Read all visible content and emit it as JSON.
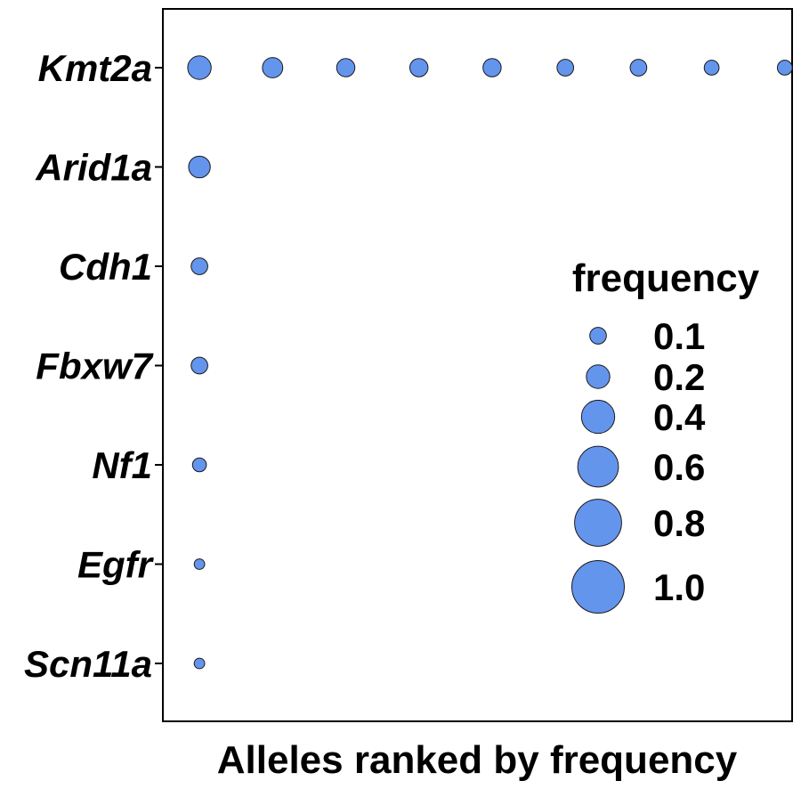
{
  "chart_data": {
    "type": "scatter",
    "title": "",
    "xlabel": "Alleles ranked by frequency",
    "ylabel": "",
    "categories": [
      "Kmt2a",
      "Arid1a",
      "Cdh1",
      "Fbxw7",
      "Nf1",
      "Egfr",
      "Scn11a"
    ],
    "xlim": [
      0.5,
      9.1
    ],
    "points": [
      {
        "gene": "Kmt2a",
        "rank": 1,
        "frequency": 0.2
      },
      {
        "gene": "Kmt2a",
        "rank": 2,
        "frequency": 0.15
      },
      {
        "gene": "Kmt2a",
        "rank": 3,
        "frequency": 0.12
      },
      {
        "gene": "Kmt2a",
        "rank": 4,
        "frequency": 0.12
      },
      {
        "gene": "Kmt2a",
        "rank": 5,
        "frequency": 0.12
      },
      {
        "gene": "Kmt2a",
        "rank": 6,
        "frequency": 0.1
      },
      {
        "gene": "Kmt2a",
        "rank": 7,
        "frequency": 0.1
      },
      {
        "gene": "Kmt2a",
        "rank": 8,
        "frequency": 0.08
      },
      {
        "gene": "Kmt2a",
        "rank": 9,
        "frequency": 0.08
      },
      {
        "gene": "Arid1a",
        "rank": 1,
        "frequency": 0.17
      },
      {
        "gene": "Cdh1",
        "rank": 1,
        "frequency": 0.1
      },
      {
        "gene": "Fbxw7",
        "rank": 1,
        "frequency": 0.1
      },
      {
        "gene": "Nf1",
        "rank": 1,
        "frequency": 0.07
      },
      {
        "gene": "Egfr",
        "rank": 1,
        "frequency": 0.04
      },
      {
        "gene": "Scn11a",
        "rank": 1,
        "frequency": 0.04
      }
    ],
    "legend": {
      "title": "frequency",
      "position": "right",
      "items": [
        {
          "value": 0.1,
          "label": "0.1"
        },
        {
          "value": 0.2,
          "label": "0.2"
        },
        {
          "value": 0.4,
          "label": "0.4"
        },
        {
          "value": 0.6,
          "label": "0.6"
        },
        {
          "value": 0.8,
          "label": "0.8"
        },
        {
          "value": 1.0,
          "label": "1.0"
        }
      ]
    },
    "colors": {
      "fill": "#6495ED",
      "stroke": "#1a1a1a"
    },
    "grid": false
  }
}
